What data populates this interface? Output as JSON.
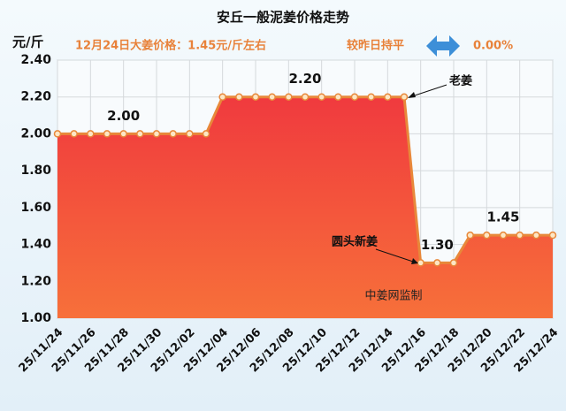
{
  "chart_data": {
    "type": "area",
    "title": "安丘一般泥姜价格走势",
    "y_label": "元/斤",
    "header_note": "12月24日大姜价格：1.45元/斤左右",
    "change_label": "较昨日持平",
    "change_value": "0.00%",
    "source": "中姜网监制",
    "annotations": [
      "老姜",
      "圆头新姜"
    ],
    "categories": [
      "25/11/24",
      null,
      "25/11/26",
      null,
      "25/11/28",
      null,
      "25/11/30",
      null,
      "25/12/02",
      null,
      "25/12/04",
      null,
      "25/12/06",
      null,
      "25/12/08",
      null,
      "25/12/10",
      null,
      "25/12/12",
      null,
      "25/12/14",
      null,
      "25/12/16",
      null,
      "25/12/18",
      null,
      "25/12/20",
      null,
      "25/12/22",
      null,
      "25/12/24"
    ],
    "values": [
      2,
      2,
      2,
      2,
      2,
      2,
      2,
      2,
      2,
      2,
      2.2,
      2.2,
      2.2,
      2.2,
      2.2,
      2.2,
      2.2,
      2.2,
      2.2,
      2.2,
      2.2,
      2.2,
      1.3,
      1.3,
      1.3,
      1.45,
      1.45,
      1.45,
      1.45,
      1.45,
      1.45
    ],
    "value_labels": [
      null,
      null,
      null,
      null,
      "2.00",
      null,
      null,
      null,
      null,
      null,
      null,
      null,
      null,
      null,
      null,
      "2.20",
      null,
      null,
      null,
      null,
      null,
      null,
      null,
      "1.30",
      null,
      null,
      null,
      "1.45",
      null,
      null,
      null
    ],
    "line_color": "#e8883a",
    "fill_top": "#f03a3e",
    "fill_bottom": "#f7703a",
    "ylim": [
      1,
      2.4
    ],
    "yticks": [
      {
        "value": 1,
        "label": "1.00"
      },
      {
        "value": 1.2,
        "label": "1.20"
      },
      {
        "value": 1.4,
        "label": "1.40"
      },
      {
        "value": 1.6,
        "label": "1.60"
      },
      {
        "value": 1.8,
        "label": "1.80"
      },
      {
        "value": 2,
        "label": "2.00"
      },
      {
        "value": 2.2,
        "label": "2.20"
      },
      {
        "value": 2.4,
        "label": "2.40"
      }
    ],
    "grid": true
  }
}
